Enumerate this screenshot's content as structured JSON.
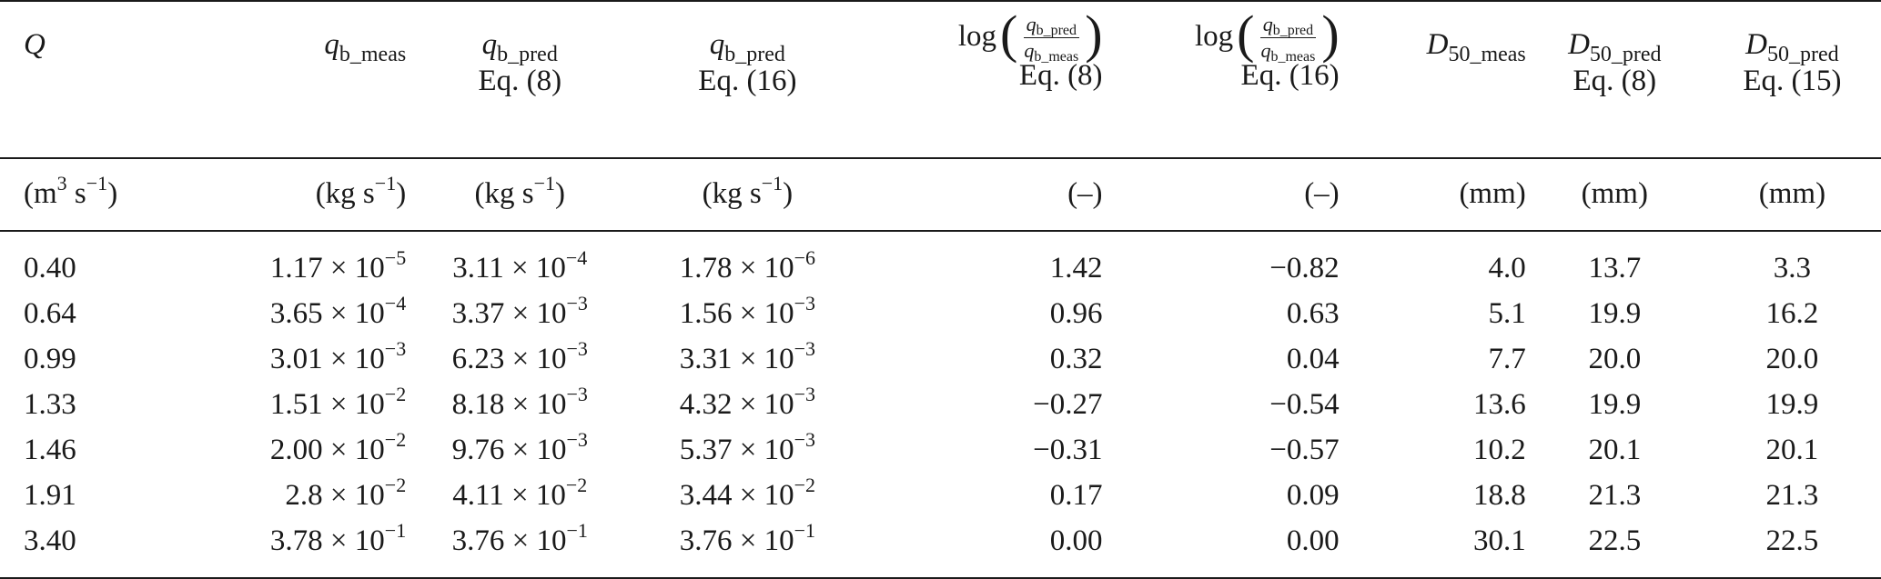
{
  "table": {
    "headers": [
      {
        "var": "Q",
        "sub": "",
        "eq": ""
      },
      {
        "var": "q",
        "sub": "b_meas",
        "eq": ""
      },
      {
        "var": "q",
        "sub": "b_pred",
        "eq": "Eq. (8)"
      },
      {
        "var": "q",
        "sub": "b_pred",
        "eq": "Eq. (16)"
      },
      {
        "log": "log",
        "num_var": "q",
        "num_sub": "b_pred",
        "den_var": "q",
        "den_sub": "b_meas",
        "eq": "Eq. (8)"
      },
      {
        "log": "log",
        "num_var": "q",
        "num_sub": "b_pred",
        "den_var": "q",
        "den_sub": "b_meas",
        "eq": "Eq. (16)"
      },
      {
        "var": "D",
        "sub": "50_meas",
        "eq": ""
      },
      {
        "var": "D",
        "sub": "50_pred",
        "eq": "Eq. (8)"
      },
      {
        "var": "D",
        "sub": "50_pred",
        "eq": "Eq. (15)"
      }
    ],
    "units": [
      {
        "base": "(m",
        "sup": "3",
        "mid": " s",
        "sup2": "−1",
        "end": ")"
      },
      {
        "base": "(kg s",
        "sup": "−1",
        "mid": "",
        "sup2": "",
        "end": ")"
      },
      {
        "base": "(kg s",
        "sup": "−1",
        "mid": "",
        "sup2": "",
        "end": ")"
      },
      {
        "base": "(kg s",
        "sup": "−1",
        "mid": "",
        "sup2": "",
        "end": ")"
      },
      {
        "base": "(–)",
        "sup": "",
        "mid": "",
        "sup2": "",
        "end": ""
      },
      {
        "base": "(–)",
        "sup": "",
        "mid": "",
        "sup2": "",
        "end": ""
      },
      {
        "base": "(mm)",
        "sup": "",
        "mid": "",
        "sup2": "",
        "end": ""
      },
      {
        "base": "(mm)",
        "sup": "",
        "mid": "",
        "sup2": "",
        "end": ""
      },
      {
        "base": "(mm)",
        "sup": "",
        "mid": "",
        "sup2": "",
        "end": ""
      }
    ],
    "rows": [
      {
        "Q": "0.40",
        "qb_meas": {
          "m": "1.17 × 10",
          "e": "−5"
        },
        "qb_pred8": {
          "m": "3.11 × 10",
          "e": "−4"
        },
        "qb_pred16": {
          "m": "1.78 × 10",
          "e": "−6"
        },
        "log8": "1.42",
        "log16": "−0.82",
        "d50_meas": "4.0",
        "d50_pred8": "13.7",
        "d50_pred15": "3.3"
      },
      {
        "Q": "0.64",
        "qb_meas": {
          "m": "3.65 × 10",
          "e": "−4"
        },
        "qb_pred8": {
          "m": "3.37 × 10",
          "e": "−3"
        },
        "qb_pred16": {
          "m": "1.56 × 10",
          "e": "−3"
        },
        "log8": "0.96",
        "log16": "0.63",
        "d50_meas": "5.1",
        "d50_pred8": "19.9",
        "d50_pred15": "16.2"
      },
      {
        "Q": "0.99",
        "qb_meas": {
          "m": "3.01 × 10",
          "e": "−3"
        },
        "qb_pred8": {
          "m": "6.23 × 10",
          "e": "−3"
        },
        "qb_pred16": {
          "m": "3.31 × 10",
          "e": "−3"
        },
        "log8": "0.32",
        "log16": "0.04",
        "d50_meas": "7.7",
        "d50_pred8": "20.0",
        "d50_pred15": "20.0"
      },
      {
        "Q": "1.33",
        "qb_meas": {
          "m": "1.51 × 10",
          "e": "−2"
        },
        "qb_pred8": {
          "m": "8.18 × 10",
          "e": "−3"
        },
        "qb_pred16": {
          "m": "4.32 × 10",
          "e": "−3"
        },
        "log8": "−0.27",
        "log16": "−0.54",
        "d50_meas": "13.6",
        "d50_pred8": "19.9",
        "d50_pred15": "19.9"
      },
      {
        "Q": "1.46",
        "qb_meas": {
          "m": "2.00 × 10",
          "e": "−2"
        },
        "qb_pred8": {
          "m": "9.76 × 10",
          "e": "−3"
        },
        "qb_pred16": {
          "m": "5.37 × 10",
          "e": "−3"
        },
        "log8": "−0.31",
        "log16": "−0.57",
        "d50_meas": "10.2",
        "d50_pred8": "20.1",
        "d50_pred15": "20.1"
      },
      {
        "Q": "1.91",
        "qb_meas": {
          "m": "2.8 × 10",
          "e": "−2"
        },
        "qb_pred8": {
          "m": "4.11 × 10",
          "e": "−2"
        },
        "qb_pred16": {
          "m": "3.44 × 10",
          "e": "−2"
        },
        "log8": "0.17",
        "log16": "0.09",
        "d50_meas": "18.8",
        "d50_pred8": "21.3",
        "d50_pred15": "21.3"
      },
      {
        "Q": "3.40",
        "qb_meas": {
          "m": "3.78 × 10",
          "e": "−1"
        },
        "qb_pred8": {
          "m": "3.76 × 10",
          "e": "−1"
        },
        "qb_pred16": {
          "m": "3.76 × 10",
          "e": "−1"
        },
        "log8": "0.00",
        "log16": "0.00",
        "d50_meas": "30.1",
        "d50_pred8": "22.5",
        "d50_pred15": "22.5"
      }
    ]
  }
}
